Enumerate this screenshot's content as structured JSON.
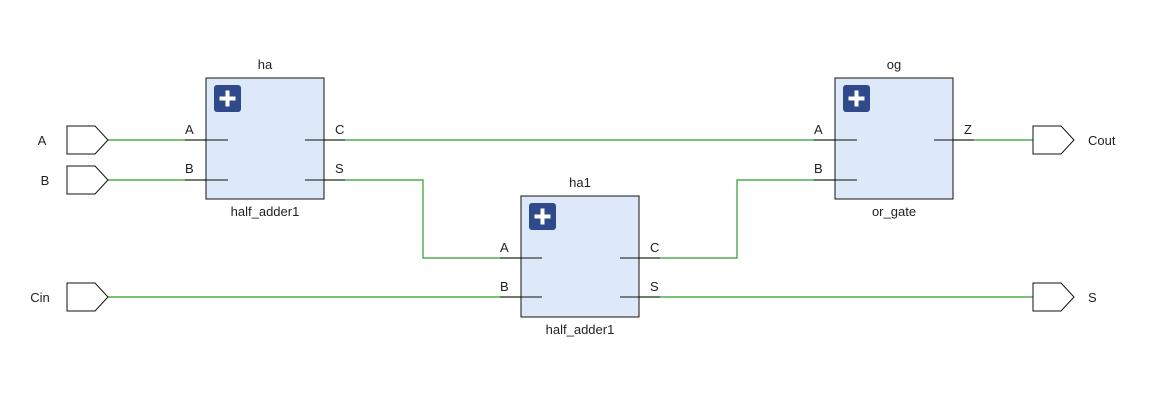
{
  "ports": {
    "A": "A",
    "B": "B",
    "Cin": "Cin",
    "Cout": "Cout",
    "S": "S"
  },
  "blocks": {
    "ha": {
      "instance": "ha",
      "module": "half_adder1",
      "pins": {
        "A": "A",
        "B": "B",
        "C": "C",
        "S": "S"
      }
    },
    "ha1": {
      "instance": "ha1",
      "module": "half_adder1",
      "pins": {
        "A": "A",
        "B": "B",
        "C": "C",
        "S": "S"
      }
    },
    "og": {
      "instance": "og",
      "module": "or_gate",
      "pins": {
        "A": "A",
        "B": "B",
        "Z": "Z"
      }
    }
  },
  "icons": {
    "expand": "plus-square-icon"
  },
  "colors": {
    "wire": "#2e9a2e",
    "block_fill": "#dde8f8",
    "expand_button": "#2f4a8a"
  }
}
